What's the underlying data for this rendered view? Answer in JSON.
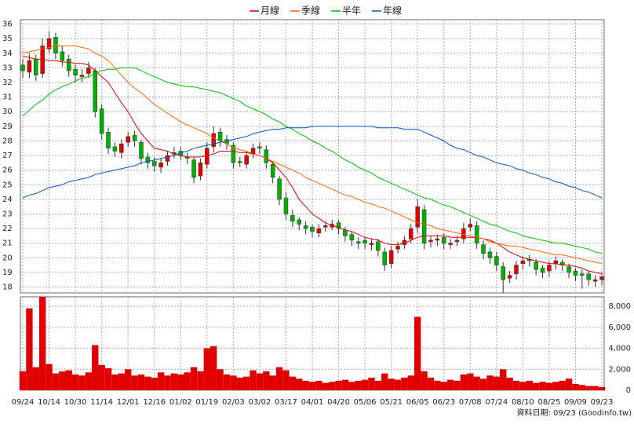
{
  "chart_data": {
    "type": "candlestick",
    "legend": [
      {
        "name": "月線",
        "color": "#e00000"
      },
      {
        "name": "季線",
        "color": "#ff6600"
      },
      {
        "name": "半年",
        "color": "#00c000"
      },
      {
        "name": "年線",
        "color": "#0055cc"
      }
    ],
    "footer": "資料日期: 09/23  (Goodinfo.tw)",
    "up_color": "#e00000",
    "down_color": "#00b000",
    "grid": true,
    "categories": [
      "09/24",
      null,
      null,
      null,
      "10/14",
      null,
      null,
      null,
      "10/30",
      null,
      null,
      null,
      "11/14",
      null,
      null,
      null,
      "12/01",
      null,
      null,
      null,
      "12/16",
      null,
      null,
      null,
      "01/02",
      null,
      null,
      null,
      "01/19",
      null,
      null,
      null,
      "02/03",
      null,
      null,
      null,
      "03/02",
      null,
      null,
      null,
      "03/17",
      null,
      null,
      null,
      "04/01",
      null,
      null,
      null,
      "04/20",
      null,
      null,
      null,
      "05/06",
      null,
      null,
      null,
      "05/21",
      null,
      null,
      null,
      "06/05",
      null,
      null,
      null,
      "06/23",
      null,
      null,
      null,
      "07/08",
      null,
      null,
      null,
      "07/24",
      null,
      null,
      null,
      "08/10",
      null,
      null,
      null,
      "08/25",
      null,
      null,
      null,
      "09/09",
      null,
      null,
      null,
      "09/23"
    ],
    "open": [
      33.2,
      32.7,
      33.6,
      32.6,
      34.3,
      35.1,
      34.1,
      33.6,
      32.9,
      32.4,
      32.6,
      32.8,
      30.2,
      28.6,
      27.6,
      27.2,
      27.9,
      28.4,
      27.9,
      26.9,
      26.6,
      26.2,
      26.6,
      27.1,
      27.3,
      26.9,
      26.7,
      25.6,
      26.4,
      27.6,
      28.6,
      28.1,
      27.7,
      26.6,
      26.4,
      27.1,
      27.6,
      27.4,
      26.4,
      25.4,
      24.1,
      22.9,
      22.6,
      22.2,
      22.1,
      21.7,
      22.1,
      22.1,
      22.4,
      21.9,
      21.6,
      21.1,
      21.2,
      20.9,
      21.1,
      20.4,
      19.6,
      20.6,
      20.9,
      21.3,
      22.1,
      23.3,
      21.1,
      21.2,
      21.4,
      20.9,
      21.1,
      21.3,
      22.1,
      22.2,
      20.9,
      20.4,
      20.1,
      19.4,
      18.6,
      18.9,
      19.6,
      19.9,
      19.7,
      19.3,
      19.1,
      19.6,
      19.7,
      19.4,
      19.1,
      18.9,
      18.9,
      18.4,
      18.5
    ],
    "high": [
      33.6,
      34.0,
      33.9,
      35.0,
      35.5,
      35.4,
      34.5,
      33.9,
      33.2,
      32.9,
      33.4,
      33.0,
      30.5,
      28.9,
      27.9,
      28.1,
      28.6,
      28.7,
      28.1,
      27.2,
      26.9,
      26.8,
      27.3,
      27.6,
      27.6,
      27.2,
      26.9,
      26.8,
      27.9,
      29.0,
      28.9,
      28.4,
      27.9,
      26.9,
      27.3,
      27.8,
      27.9,
      27.7,
      26.6,
      25.6,
      24.5,
      23.3,
      22.8,
      22.5,
      22.3,
      22.3,
      22.5,
      22.6,
      22.6,
      22.1,
      21.8,
      21.4,
      21.4,
      21.3,
      21.3,
      20.7,
      20.8,
      21.1,
      21.5,
      22.3,
      24.0,
      23.6,
      21.5,
      21.6,
      21.7,
      21.3,
      21.5,
      22.4,
      22.7,
      22.5,
      21.2,
      20.7,
      20.4,
      19.7,
      19.1,
      19.8,
      20.1,
      20.2,
      19.9,
      19.5,
      19.8,
      20.1,
      19.9,
      19.6,
      19.3,
      19.2,
      19.1,
      18.8,
      19.0
    ],
    "low": [
      32.3,
      32.3,
      32.1,
      32.3,
      34.0,
      33.6,
      33.1,
      32.4,
      32.0,
      32.0,
      32.3,
      29.6,
      28.1,
      27.1,
      26.9,
      26.8,
      27.6,
      27.6,
      26.4,
      26.1,
      25.9,
      25.8,
      26.3,
      26.8,
      26.7,
      26.4,
      25.1,
      25.3,
      26.1,
      27.2,
      27.6,
      27.4,
      26.1,
      26.2,
      26.1,
      26.8,
      27.1,
      26.1,
      25.1,
      23.6,
      22.6,
      22.1,
      21.9,
      21.6,
      21.4,
      21.4,
      21.8,
      21.9,
      21.6,
      21.1,
      20.8,
      20.6,
      20.6,
      20.5,
      20.1,
      19.1,
      19.3,
      20.3,
      20.6,
      21.0,
      21.7,
      20.6,
      20.7,
      20.8,
      20.6,
      20.6,
      20.8,
      21.0,
      21.8,
      20.6,
      19.9,
      19.6,
      19.1,
      17.6,
      18.3,
      18.5,
      19.2,
      19.4,
      18.8,
      18.6,
      18.7,
      19.2,
      19.1,
      18.6,
      18.4,
      17.9,
      18.1,
      18.0,
      18.1
    ],
    "close": [
      32.8,
      33.5,
      32.5,
      34.5,
      35.0,
      34.0,
      33.5,
      32.8,
      32.5,
      32.5,
      33.0,
      30.0,
      28.5,
      27.5,
      27.3,
      27.8,
      28.3,
      28.0,
      26.8,
      26.5,
      26.3,
      26.5,
      27.0,
      27.2,
      27.0,
      26.8,
      25.5,
      26.5,
      27.5,
      28.5,
      28.0,
      27.8,
      26.5,
      26.5,
      27.0,
      27.5,
      27.5,
      26.5,
      25.5,
      24.0,
      23.0,
      22.5,
      22.3,
      22.0,
      21.8,
      22.0,
      22.2,
      22.3,
      22.0,
      21.5,
      21.2,
      21.0,
      21.0,
      21.0,
      20.5,
      19.5,
      20.5,
      20.8,
      21.2,
      22.0,
      23.5,
      21.0,
      21.2,
      21.3,
      21.0,
      21.0,
      21.2,
      22.0,
      22.3,
      21.0,
      20.3,
      20.0,
      19.5,
      18.5,
      18.8,
      19.5,
      19.8,
      19.8,
      19.2,
      19.0,
      19.5,
      19.8,
      19.5,
      19.0,
      18.8,
      18.8,
      18.5,
      18.5,
      18.7
    ],
    "series": [
      {
        "color": "#e00000",
        "values": [
          33.8,
          33.7,
          33.6,
          33.6,
          33.5,
          33.5,
          33.4,
          33.4,
          33.3,
          33.3,
          33.2,
          32.8,
          32.4,
          32.0,
          31.3,
          30.6,
          30.0,
          29.2,
          28.5,
          28.0,
          27.5,
          27.4,
          27.3,
          27.1,
          27.0,
          26.9,
          26.9,
          26.9,
          27.0,
          27.1,
          27.3,
          27.3,
          27.3,
          27.2,
          27.2,
          27.1,
          27.0,
          26.8,
          26.5,
          26.0,
          25.5,
          24.8,
          24.0,
          23.5,
          23.0,
          22.7,
          22.4,
          22.2,
          22.1,
          21.9,
          21.8,
          21.6,
          21.4,
          21.3,
          21.2,
          21.0,
          20.9,
          20.9,
          21.0,
          21.2,
          21.4,
          21.5,
          21.5,
          21.5,
          21.5,
          21.4,
          21.4,
          21.4,
          21.4,
          21.4,
          21.3,
          21.2,
          21.0,
          20.7,
          20.4,
          20.2,
          20.0,
          19.9,
          19.8,
          19.7,
          19.6,
          19.6,
          19.5,
          19.5,
          19.4,
          19.3,
          19.1,
          19.0,
          18.9
        ]
      },
      {
        "color": "#ff6600",
        "values": [
          34.0,
          34.1,
          34.2,
          34.3,
          34.4,
          34.5,
          34.5,
          34.5,
          34.5,
          34.4,
          34.3,
          34.0,
          33.8,
          33.5,
          33.0,
          32.5,
          32.0,
          31.6,
          31.3,
          30.9,
          30.5,
          30.2,
          29.9,
          29.6,
          29.3,
          29.1,
          28.9,
          28.7,
          28.5,
          28.2,
          28.0,
          27.8,
          27.5,
          27.4,
          27.3,
          27.1,
          27.0,
          26.8,
          26.6,
          26.4,
          26.2,
          26.0,
          25.8,
          25.5,
          25.3,
          25.1,
          24.9,
          24.7,
          24.5,
          24.3,
          24.2,
          24.0,
          23.8,
          23.7,
          23.5,
          23.4,
          23.2,
          23.0,
          22.8,
          22.6,
          22.4,
          22.3,
          22.2,
          22.0,
          21.9,
          21.8,
          21.7,
          21.6,
          21.5,
          21.4,
          21.3,
          21.1,
          21.0,
          20.9,
          20.8,
          20.8,
          20.7,
          20.6,
          20.5,
          20.4,
          20.3,
          20.2,
          20.2,
          20.1,
          20.0,
          19.9,
          19.8,
          19.7,
          19.6
        ]
      },
      {
        "color": "#00c000",
        "values": [
          29.7,
          30.1,
          30.5,
          30.8,
          31.2,
          31.5,
          31.7,
          31.9,
          32.1,
          32.3,
          32.4,
          32.6,
          32.8,
          32.9,
          32.9,
          33.0,
          33.0,
          33.0,
          32.8,
          32.6,
          32.4,
          32.2,
          32.0,
          31.9,
          31.8,
          31.7,
          31.7,
          31.6,
          31.5,
          31.4,
          31.3,
          31.1,
          30.9,
          30.7,
          30.4,
          30.2,
          30.0,
          29.8,
          29.5,
          29.3,
          29.0,
          28.8,
          28.5,
          28.3,
          28.0,
          27.8,
          27.5,
          27.3,
          27.0,
          26.7,
          26.5,
          26.2,
          26.0,
          25.8,
          25.5,
          25.3,
          25.1,
          24.9,
          24.7,
          24.5,
          24.3,
          24.1,
          24.0,
          23.8,
          23.6,
          23.5,
          23.3,
          23.1,
          22.9,
          22.7,
          22.5,
          22.3,
          22.2,
          22.0,
          21.8,
          21.7,
          21.5,
          21.4,
          21.3,
          21.2,
          21.1,
          21.0,
          21.0,
          20.9,
          20.8,
          20.7,
          20.6,
          20.4,
          20.3
        ]
      },
      {
        "color": "#0055cc",
        "values": [
          24.1,
          24.3,
          24.4,
          24.6,
          24.8,
          24.9,
          25.0,
          25.2,
          25.3,
          25.4,
          25.5,
          25.7,
          25.8,
          25.9,
          26.0,
          26.1,
          26.2,
          26.3,
          26.5,
          26.6,
          26.7,
          26.8,
          26.9,
          27.0,
          27.2,
          27.3,
          27.5,
          27.6,
          27.7,
          27.8,
          27.9,
          28.0,
          28.1,
          28.2,
          28.3,
          28.5,
          28.6,
          28.7,
          28.8,
          28.8,
          28.9,
          28.9,
          28.9,
          28.9,
          29.0,
          29.0,
          29.0,
          29.0,
          29.0,
          29.0,
          29.0,
          29.0,
          29.0,
          29.0,
          28.9,
          28.9,
          28.9,
          28.9,
          28.8,
          28.8,
          28.8,
          28.6,
          28.4,
          28.2,
          28.0,
          27.7,
          27.5,
          27.4,
          27.2,
          27.0,
          26.9,
          26.7,
          26.5,
          26.4,
          26.3,
          26.1,
          26.0,
          25.8,
          25.7,
          25.5,
          25.4,
          25.2,
          25.1,
          24.9,
          24.8,
          24.6,
          24.5,
          24.3,
          24.1
        ]
      }
    ],
    "ylim": [
      17.6,
      36.3
    ],
    "yticks": [
      18,
      19,
      20,
      21,
      22,
      23,
      24,
      25,
      26,
      27,
      28,
      29,
      30,
      31,
      32,
      33,
      34,
      35,
      36
    ],
    "volume": {
      "type": "bar",
      "color": "#e00000",
      "values": [
        1800,
        7800,
        2200,
        8900,
        2500,
        1600,
        1800,
        1900,
        1500,
        1400,
        1700,
        4300,
        2400,
        2100,
        1500,
        1600,
        2000,
        1400,
        1500,
        1300,
        1200,
        1700,
        1400,
        1600,
        1500,
        1700,
        2200,
        1800,
        4000,
        4200,
        2000,
        1500,
        1400,
        1200,
        1300,
        1900,
        1600,
        1800,
        1400,
        2200,
        1900,
        1300,
        1100,
        900,
        800,
        900,
        700,
        800,
        900,
        1000,
        800,
        900,
        1000,
        1200,
        900,
        1600,
        1100,
        1000,
        1200,
        1400,
        7000,
        1800,
        1200,
        900,
        800,
        1000,
        900,
        1500,
        1600,
        1300,
        1100,
        1400,
        1300,
        2000,
        1200,
        900,
        800,
        900,
        700,
        800,
        700,
        800,
        900,
        1100,
        600,
        500,
        400,
        400,
        300
      ],
      "ylim": [
        0,
        8900
      ],
      "yticks": [
        0,
        {
          "value": 2000,
          "label": "2,000"
        },
        {
          "value": 4000,
          "label": "4,000"
        },
        {
          "value": 6000,
          "label": "6,000"
        },
        {
          "value": 8000,
          "label": "8,000"
        }
      ]
    }
  }
}
